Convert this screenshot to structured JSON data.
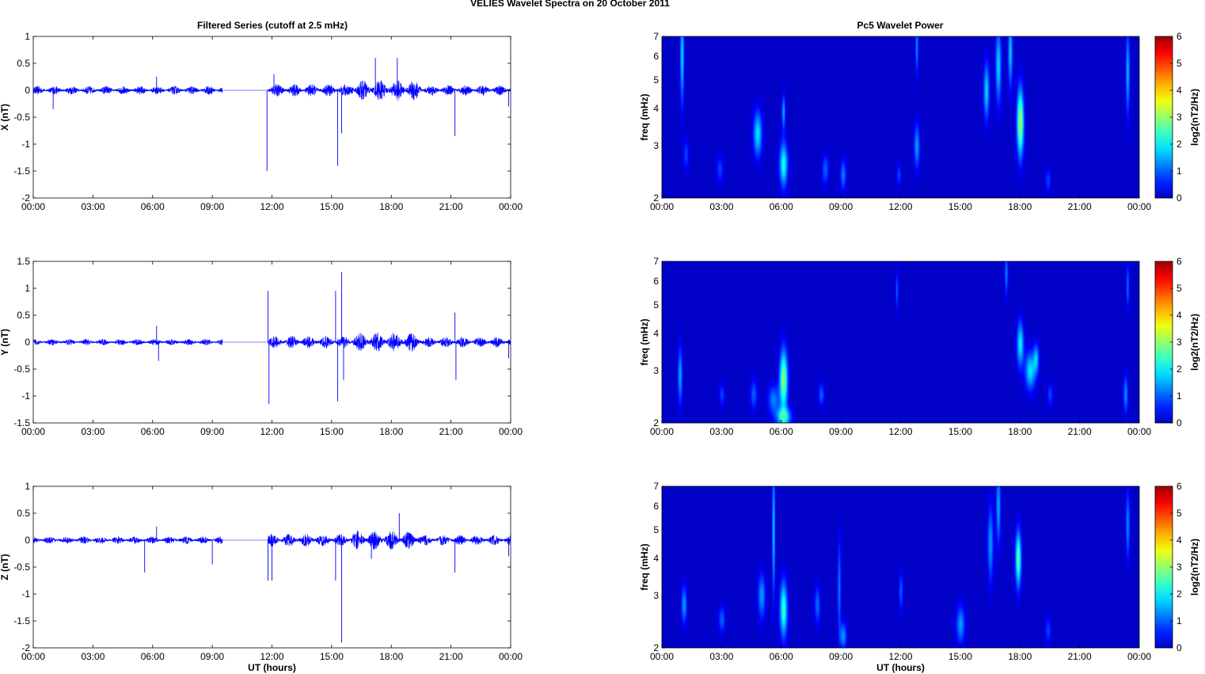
{
  "figure_title": "VELIES Wavelet Spectra on 20 October   2011",
  "left_title": "Filtered Series (cutoff at 2.5 mHz)",
  "right_title": "Pc5 Wavelet Power",
  "time_ticks": [
    "00:00",
    "03:00",
    "06:00",
    "09:00",
    "12:00",
    "15:00",
    "18:00",
    "21:00",
    "00:00"
  ],
  "xlabel": "UT (hours)",
  "freq_ylabel": "freq (mHz)",
  "freq_ticks": [
    "2",
    "3",
    "4",
    "5",
    "6",
    "7"
  ],
  "cbar_label": "log2(nT2/Hz)",
  "cbar_ticks": [
    "0",
    "1",
    "2",
    "3",
    "4",
    "5",
    "6"
  ],
  "colors": {
    "series": "#0000ff",
    "background": "#00008f"
  },
  "chart_data": [
    {
      "type": "line",
      "component": "X",
      "ylabel": "X (nT)",
      "ylim": [
        -2,
        1
      ],
      "yticks": [
        "1",
        "0.5",
        "0",
        "-0.5",
        "-1",
        "-1.5",
        "-2"
      ],
      "xlim_hours": [
        0,
        24
      ],
      "data_gap_hours": [
        9.5,
        11.8
      ],
      "segments_amplitude": [
        {
          "start": 0.0,
          "end": 9.5,
          "amp": 0.08
        },
        {
          "start": 11.8,
          "end": 16.0,
          "amp": 0.12
        },
        {
          "start": 16.0,
          "end": 19.5,
          "amp": 0.2
        },
        {
          "start": 19.5,
          "end": 24.0,
          "amp": 0.1
        }
      ],
      "spikes": [
        {
          "t": 1.0,
          "v": -0.35
        },
        {
          "t": 6.2,
          "v": 0.25
        },
        {
          "t": 11.75,
          "v": -1.5
        },
        {
          "t": 12.1,
          "v": 0.3
        },
        {
          "t": 15.3,
          "v": -1.4
        },
        {
          "t": 15.5,
          "v": -0.8
        },
        {
          "t": 17.2,
          "v": 0.6
        },
        {
          "t": 18.3,
          "v": 0.6
        },
        {
          "t": 21.2,
          "v": -0.85
        },
        {
          "t": 23.9,
          "v": -0.3
        }
      ]
    },
    {
      "type": "line",
      "component": "Y",
      "ylabel": "Y (nT)",
      "ylim": [
        -1.5,
        1.5
      ],
      "yticks": [
        "1.5",
        "1",
        "0.5",
        "0",
        "-0.5",
        "-1",
        "-1.5"
      ],
      "xlim_hours": [
        0,
        24
      ],
      "data_gap_hours": [
        9.5,
        11.8
      ],
      "segments_amplitude": [
        {
          "start": 0.0,
          "end": 9.5,
          "amp": 0.06
        },
        {
          "start": 11.8,
          "end": 16.0,
          "amp": 0.12
        },
        {
          "start": 16.0,
          "end": 19.5,
          "amp": 0.18
        },
        {
          "start": 19.5,
          "end": 24.0,
          "amp": 0.1
        }
      ],
      "spikes": [
        {
          "t": 6.2,
          "v": 0.3
        },
        {
          "t": 6.3,
          "v": -0.35
        },
        {
          "t": 11.8,
          "v": 0.95
        },
        {
          "t": 11.85,
          "v": -1.15
        },
        {
          "t": 15.2,
          "v": 0.95
        },
        {
          "t": 15.3,
          "v": -1.1
        },
        {
          "t": 15.5,
          "v": 1.3
        },
        {
          "t": 15.6,
          "v": -0.7
        },
        {
          "t": 21.2,
          "v": 0.55
        },
        {
          "t": 21.25,
          "v": -0.7
        },
        {
          "t": 23.9,
          "v": -0.3
        }
      ]
    },
    {
      "type": "line",
      "component": "Z",
      "ylabel": "Z (nT)",
      "ylim": [
        -2,
        1
      ],
      "yticks": [
        "1",
        "0.5",
        "0",
        "-0.5",
        "-1",
        "-1.5",
        "-2"
      ],
      "xlim_hours": [
        0,
        24
      ],
      "data_gap_hours": [
        9.5,
        11.8
      ],
      "segments_amplitude": [
        {
          "start": 0.0,
          "end": 9.5,
          "amp": 0.07
        },
        {
          "start": 11.8,
          "end": 16.0,
          "amp": 0.12
        },
        {
          "start": 16.0,
          "end": 19.5,
          "amp": 0.18
        },
        {
          "start": 19.5,
          "end": 24.0,
          "amp": 0.1
        }
      ],
      "spikes": [
        {
          "t": 5.6,
          "v": -0.6
        },
        {
          "t": 6.2,
          "v": 0.25
        },
        {
          "t": 9.0,
          "v": -0.45
        },
        {
          "t": 11.8,
          "v": -0.75
        },
        {
          "t": 12.0,
          "v": -0.75
        },
        {
          "t": 15.2,
          "v": -0.75
        },
        {
          "t": 15.5,
          "v": -1.9
        },
        {
          "t": 17.0,
          "v": -0.35
        },
        {
          "t": 18.4,
          "v": 0.5
        },
        {
          "t": 21.2,
          "v": -0.6
        },
        {
          "t": 23.9,
          "v": -0.3
        }
      ]
    },
    {
      "type": "heatmap",
      "component": "X",
      "title": "Pc5 Wavelet Power",
      "ylabel": "freq (mHz)",
      "ylim": [
        2,
        7
      ],
      "yscale": "log",
      "xlim_hours": [
        0,
        24
      ],
      "clim": [
        0,
        6
      ],
      "colormap": "jet",
      "blobs": [
        {
          "t": 1.0,
          "f": 6.0,
          "sf": 0.25,
          "dt": 0.07,
          "p": 1.8
        },
        {
          "t": 1.2,
          "f": 2.8,
          "sf": 0.08,
          "dt": 0.1,
          "p": 0.8
        },
        {
          "t": 2.9,
          "f": 2.5,
          "sf": 0.07,
          "dt": 0.12,
          "p": 0.8
        },
        {
          "t": 4.8,
          "f": 3.3,
          "sf": 0.12,
          "dt": 0.15,
          "p": 1.9
        },
        {
          "t": 6.1,
          "f": 2.6,
          "sf": 0.12,
          "dt": 0.14,
          "p": 2.2
        },
        {
          "t": 6.1,
          "f": 3.9,
          "sf": 0.09,
          "dt": 0.06,
          "p": 1.5
        },
        {
          "t": 8.2,
          "f": 2.5,
          "sf": 0.08,
          "dt": 0.12,
          "p": 1.0
        },
        {
          "t": 9.1,
          "f": 2.4,
          "sf": 0.08,
          "dt": 0.1,
          "p": 1.2
        },
        {
          "t": 11.9,
          "f": 2.4,
          "sf": 0.06,
          "dt": 0.08,
          "p": 0.8
        },
        {
          "t": 12.8,
          "f": 3.0,
          "sf": 0.12,
          "dt": 0.1,
          "p": 1.4
        },
        {
          "t": 12.8,
          "f": 6.5,
          "sf": 0.15,
          "dt": 0.05,
          "p": 1.3
        },
        {
          "t": 16.3,
          "f": 4.6,
          "sf": 0.15,
          "dt": 0.1,
          "p": 1.8
        },
        {
          "t": 16.9,
          "f": 5.6,
          "sf": 0.2,
          "dt": 0.1,
          "p": 1.8
        },
        {
          "t": 17.5,
          "f": 6.2,
          "sf": 0.18,
          "dt": 0.08,
          "p": 1.7
        },
        {
          "t": 18.0,
          "f": 3.6,
          "sf": 0.18,
          "dt": 0.12,
          "p": 3.2
        },
        {
          "t": 19.4,
          "f": 2.3,
          "sf": 0.06,
          "dt": 0.1,
          "p": 0.8
        },
        {
          "t": 23.4,
          "f": 5.3,
          "sf": 0.22,
          "dt": 0.07,
          "p": 1.6
        }
      ]
    },
    {
      "type": "heatmap",
      "component": "Y",
      "title": "",
      "ylabel": "freq (mHz)",
      "ylim": [
        2,
        7
      ],
      "yscale": "log",
      "xlim_hours": [
        0,
        24
      ],
      "clim": [
        0,
        6
      ],
      "colormap": "jet",
      "blobs": [
        {
          "t": 0.9,
          "f": 2.9,
          "sf": 0.15,
          "dt": 0.08,
          "p": 1.5
        },
        {
          "t": 3.0,
          "f": 2.5,
          "sf": 0.06,
          "dt": 0.1,
          "p": 0.8
        },
        {
          "t": 4.6,
          "f": 2.5,
          "sf": 0.08,
          "dt": 0.12,
          "p": 1.0
        },
        {
          "t": 5.6,
          "f": 2.4,
          "sf": 0.08,
          "dt": 0.2,
          "p": 1.2
        },
        {
          "t": 6.1,
          "f": 2.8,
          "sf": 0.16,
          "dt": 0.14,
          "p": 3.0
        },
        {
          "t": 6.1,
          "f": 2.1,
          "sf": 0.05,
          "dt": 0.25,
          "p": 2.2
        },
        {
          "t": 8.0,
          "f": 2.5,
          "sf": 0.06,
          "dt": 0.1,
          "p": 1.0
        },
        {
          "t": 11.8,
          "f": 5.6,
          "sf": 0.1,
          "dt": 0.05,
          "p": 1.0
        },
        {
          "t": 17.3,
          "f": 6.4,
          "sf": 0.12,
          "dt": 0.06,
          "p": 1.2
        },
        {
          "t": 18.0,
          "f": 3.7,
          "sf": 0.12,
          "dt": 0.12,
          "p": 2.0
        },
        {
          "t": 18.5,
          "f": 3.0,
          "sf": 0.1,
          "dt": 0.18,
          "p": 1.9
        },
        {
          "t": 18.8,
          "f": 3.3,
          "sf": 0.08,
          "dt": 0.1,
          "p": 1.5
        },
        {
          "t": 19.5,
          "f": 2.5,
          "sf": 0.06,
          "dt": 0.1,
          "p": 0.8
        },
        {
          "t": 23.3,
          "f": 2.5,
          "sf": 0.1,
          "dt": 0.08,
          "p": 1.3
        },
        {
          "t": 23.4,
          "f": 5.8,
          "sf": 0.12,
          "dt": 0.05,
          "p": 1.1
        }
      ]
    },
    {
      "type": "heatmap",
      "component": "Z",
      "title": "",
      "ylabel": "freq (mHz)",
      "ylim": [
        2,
        7
      ],
      "yscale": "log",
      "xlim_hours": [
        0,
        24
      ],
      "clim": [
        0,
        6
      ],
      "colormap": "jet",
      "blobs": [
        {
          "t": 1.1,
          "f": 2.8,
          "sf": 0.1,
          "dt": 0.1,
          "p": 1.4
        },
        {
          "t": 3.0,
          "f": 2.5,
          "sf": 0.07,
          "dt": 0.12,
          "p": 1.0
        },
        {
          "t": 5.0,
          "f": 3.0,
          "sf": 0.12,
          "dt": 0.13,
          "p": 1.4
        },
        {
          "t": 5.6,
          "f": 5.0,
          "sf": 0.35,
          "dt": 0.05,
          "p": 1.8
        },
        {
          "t": 6.1,
          "f": 2.7,
          "sf": 0.15,
          "dt": 0.13,
          "p": 2.4
        },
        {
          "t": 7.8,
          "f": 2.8,
          "sf": 0.1,
          "dt": 0.1,
          "p": 1.1
        },
        {
          "t": 8.9,
          "f": 3.2,
          "sf": 0.25,
          "dt": 0.06,
          "p": 1.2
        },
        {
          "t": 9.1,
          "f": 2.2,
          "sf": 0.07,
          "dt": 0.12,
          "p": 1.4
        },
        {
          "t": 12.0,
          "f": 3.1,
          "sf": 0.1,
          "dt": 0.07,
          "p": 1.0
        },
        {
          "t": 15.0,
          "f": 2.4,
          "sf": 0.1,
          "dt": 0.15,
          "p": 1.4
        },
        {
          "t": 16.5,
          "f": 4.5,
          "sf": 0.2,
          "dt": 0.1,
          "p": 1.4
        },
        {
          "t": 16.9,
          "f": 6.0,
          "sf": 0.2,
          "dt": 0.08,
          "p": 1.5
        },
        {
          "t": 17.9,
          "f": 4.0,
          "sf": 0.15,
          "dt": 0.1,
          "p": 2.7
        },
        {
          "t": 19.4,
          "f": 2.3,
          "sf": 0.07,
          "dt": 0.1,
          "p": 0.8
        },
        {
          "t": 23.4,
          "f": 5.2,
          "sf": 0.18,
          "dt": 0.07,
          "p": 1.3
        }
      ]
    }
  ]
}
